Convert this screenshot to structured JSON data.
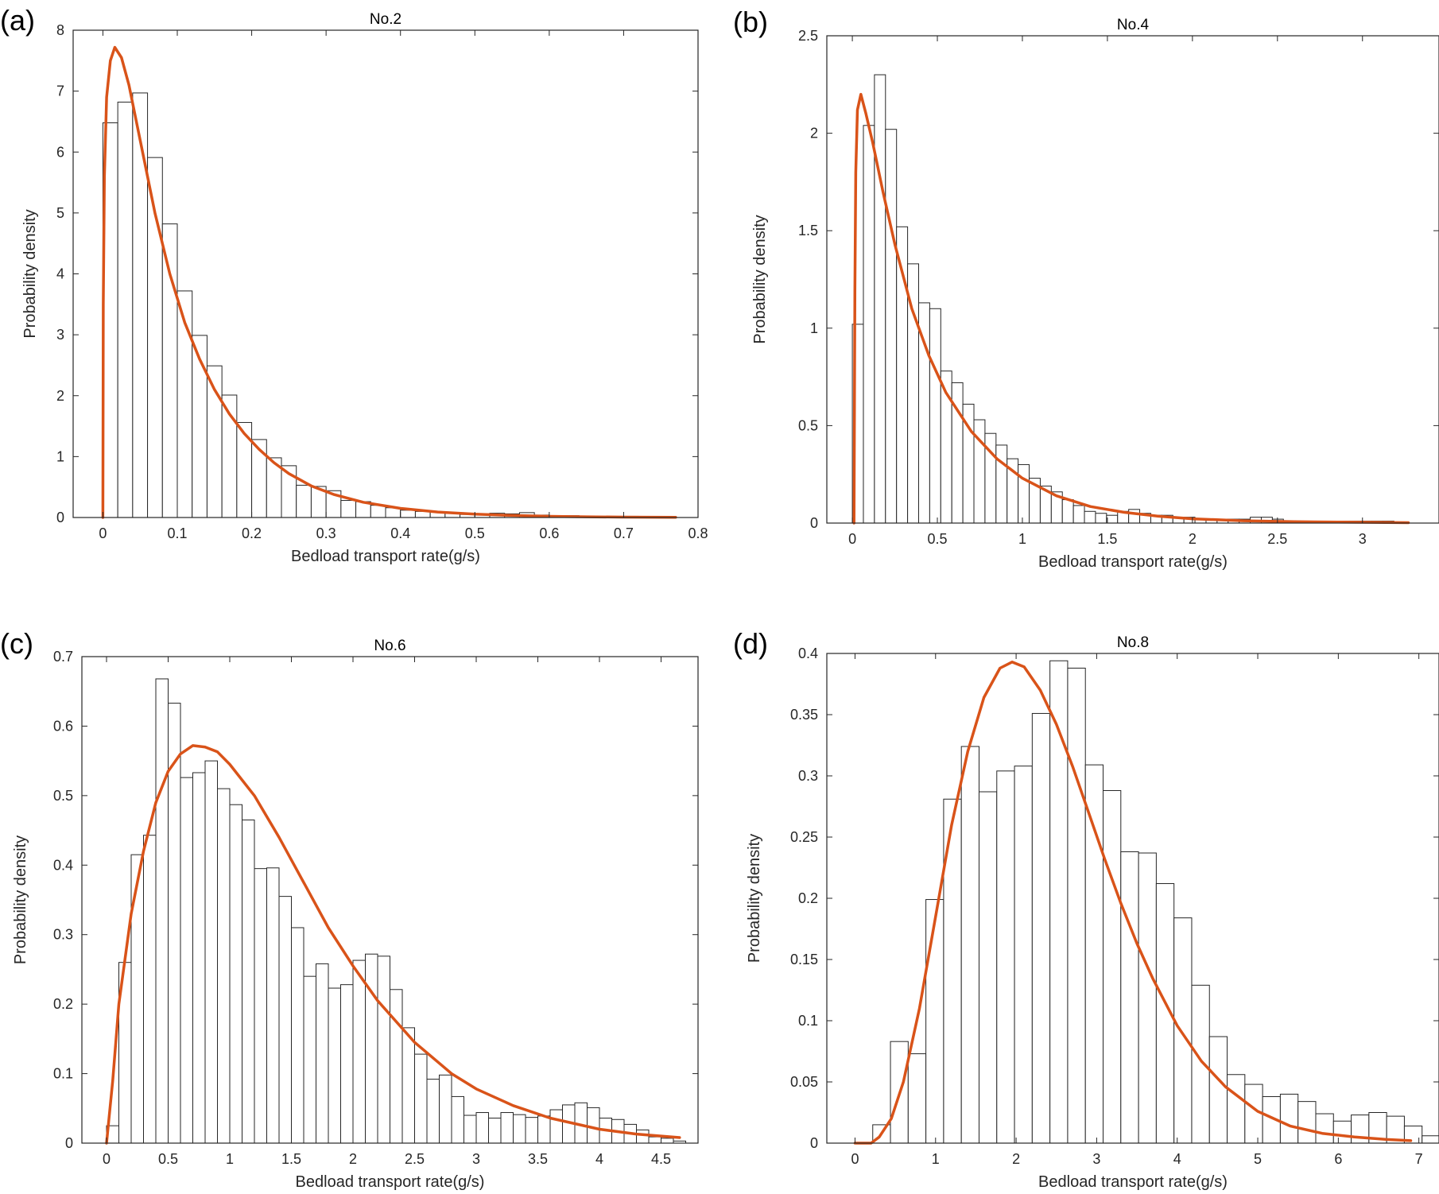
{
  "figure": {
    "curve_color": "#D95319",
    "bar_edge_color": "#262626",
    "bar_fill_color": "#FFFFFF"
  },
  "chart_data": [
    {
      "type": "bar",
      "panel_label": "(a)",
      "title": "No.2",
      "xlabel": "Bedload transport rate(g/s)",
      "ylabel": "Probability density",
      "xlim": [
        -0.04,
        0.8
      ],
      "ylim": [
        0,
        8
      ],
      "xticks": [
        0,
        0.1,
        0.2,
        0.3,
        0.4,
        0.5,
        0.6,
        0.7,
        0.8
      ],
      "yticks": [
        0,
        1,
        2,
        3,
        4,
        5,
        6,
        7,
        8
      ],
      "grid": false,
      "legend": "none",
      "histogram": {
        "bin_start": 0.0,
        "bin_width": 0.02,
        "values": [
          6.48,
          6.82,
          6.97,
          5.91,
          4.82,
          3.72,
          2.99,
          2.49,
          2.01,
          1.56,
          1.28,
          0.98,
          0.85,
          0.53,
          0.51,
          0.44,
          0.28,
          0.26,
          0.2,
          0.16,
          0.12,
          0.1,
          0.09,
          0.07,
          0.05,
          0.06,
          0.07,
          0.06,
          0.08,
          0.04,
          0.03,
          0.03,
          0.02,
          0.02,
          0.02,
          0.02,
          0.01,
          0.01
        ]
      },
      "fitted_curve": {
        "x": [
          0,
          0.0005,
          0.002,
          0.005,
          0.01,
          0.016,
          0.025,
          0.035,
          0.05,
          0.07,
          0.09,
          0.11,
          0.13,
          0.15,
          0.17,
          0.19,
          0.21,
          0.23,
          0.25,
          0.28,
          0.31,
          0.35,
          0.4,
          0.45,
          0.5,
          0.55,
          0.6,
          0.65,
          0.7,
          0.77
        ],
        "y": [
          0,
          3.5,
          5.6,
          6.9,
          7.5,
          7.72,
          7.55,
          7.1,
          6.2,
          5.0,
          4.0,
          3.2,
          2.6,
          2.1,
          1.7,
          1.38,
          1.12,
          0.9,
          0.72,
          0.52,
          0.38,
          0.25,
          0.15,
          0.09,
          0.055,
          0.034,
          0.02,
          0.012,
          0.007,
          0.004
        ]
      }
    },
    {
      "type": "bar",
      "panel_label": "(b)",
      "title": "No.4",
      "xlabel": "Bedload transport rate(g/s)",
      "ylabel": "Probability density",
      "xlim": [
        -0.15,
        3.45
      ],
      "ylim": [
        0,
        2.5
      ],
      "xticks": [
        0,
        0.5,
        1,
        1.5,
        2,
        2.5,
        3
      ],
      "yticks": [
        0,
        0.5,
        1,
        1.5,
        2,
        2.5
      ],
      "grid": false,
      "legend": "none",
      "histogram": {
        "bin_start": 0.0,
        "bin_width": 0.065,
        "values": [
          1.02,
          2.04,
          2.3,
          2.02,
          1.52,
          1.33,
          1.13,
          1.1,
          0.78,
          0.72,
          0.61,
          0.53,
          0.46,
          0.4,
          0.33,
          0.3,
          0.23,
          0.19,
          0.16,
          0.12,
          0.09,
          0.06,
          0.05,
          0.04,
          0.06,
          0.07,
          0.05,
          0.04,
          0.04,
          0.03,
          0.03,
          0.02,
          0.02,
          0.02,
          0.02,
          0.02,
          0.03,
          0.03,
          0.02,
          0.01,
          0.01,
          0.01,
          0.01,
          0.01,
          0.01,
          0.01,
          0.01,
          0.01,
          0.01
        ]
      },
      "fitted_curve": {
        "x": [
          0.01,
          0.015,
          0.02,
          0.03,
          0.05,
          0.08,
          0.12,
          0.18,
          0.25,
          0.35,
          0.45,
          0.55,
          0.7,
          0.85,
          1.0,
          1.2,
          1.4,
          1.6,
          1.8,
          2.0,
          2.3,
          2.6,
          3.0,
          3.27
        ],
        "y": [
          0,
          1.2,
          1.8,
          2.12,
          2.2,
          2.1,
          1.95,
          1.7,
          1.43,
          1.1,
          0.86,
          0.67,
          0.47,
          0.33,
          0.23,
          0.14,
          0.085,
          0.055,
          0.035,
          0.022,
          0.012,
          0.007,
          0.004,
          0.002
        ]
      }
    },
    {
      "type": "bar",
      "panel_label": "(c)",
      "title": "No.6",
      "xlabel": "Bedload transport rate(g/s)",
      "ylabel": "Probability density",
      "xlim": [
        -0.2,
        4.8
      ],
      "ylim": [
        0,
        0.7
      ],
      "xticks": [
        0,
        0.5,
        1,
        1.5,
        2,
        2.5,
        3,
        3.5,
        4,
        4.5
      ],
      "yticks": [
        0,
        0.1,
        0.2,
        0.3,
        0.4,
        0.5,
        0.6,
        0.7
      ],
      "grid": false,
      "legend": "none",
      "histogram": {
        "bin_start": 0.0,
        "bin_width": 0.1,
        "values": [
          0.025,
          0.26,
          0.415,
          0.443,
          0.668,
          0.633,
          0.526,
          0.533,
          0.55,
          0.51,
          0.487,
          0.465,
          0.395,
          0.396,
          0.355,
          0.31,
          0.24,
          0.258,
          0.223,
          0.228,
          0.263,
          0.272,
          0.269,
          0.221,
          0.166,
          0.128,
          0.092,
          0.098,
          0.067,
          0.04,
          0.044,
          0.036,
          0.044,
          0.041,
          0.037,
          0.039,
          0.048,
          0.055,
          0.058,
          0.051,
          0.036,
          0.034,
          0.027,
          0.019,
          0.009,
          0.007,
          0.003
        ]
      },
      "fitted_curve": {
        "x": [
          0.0,
          0.05,
          0.1,
          0.2,
          0.3,
          0.4,
          0.5,
          0.6,
          0.7,
          0.8,
          0.9,
          1.0,
          1.2,
          1.4,
          1.6,
          1.8,
          2.0,
          2.2,
          2.5,
          2.8,
          3.0,
          3.3,
          3.6,
          4.0,
          4.3,
          4.65
        ],
        "y": [
          0,
          0.09,
          0.2,
          0.33,
          0.42,
          0.49,
          0.535,
          0.56,
          0.572,
          0.57,
          0.563,
          0.545,
          0.5,
          0.44,
          0.375,
          0.31,
          0.255,
          0.205,
          0.145,
          0.1,
          0.078,
          0.054,
          0.036,
          0.02,
          0.013,
          0.008
        ]
      }
    },
    {
      "type": "bar",
      "panel_label": "(d)",
      "title": "No.8",
      "xlabel": "Bedload transport rate(g/s)",
      "ylabel": "Probability density",
      "xlim": [
        -0.35,
        7.25
      ],
      "ylim": [
        0,
        0.4
      ],
      "xticks": [
        0,
        1,
        2,
        3,
        4,
        5,
        6,
        7
      ],
      "yticks": [
        0,
        0.05,
        0.1,
        0.15,
        0.2,
        0.25,
        0.3,
        0.35,
        0.4
      ],
      "grid": false,
      "legend": "none",
      "histogram": {
        "bin_start": 0.0,
        "bin_width": 0.22,
        "values": [
          0.0,
          0.015,
          0.083,
          0.073,
          0.199,
          0.281,
          0.324,
          0.287,
          0.304,
          0.308,
          0.351,
          0.394,
          0.388,
          0.309,
          0.288,
          0.238,
          0.237,
          0.212,
          0.184,
          0.129,
          0.087,
          0.056,
          0.048,
          0.038,
          0.04,
          0.034,
          0.024,
          0.018,
          0.023,
          0.025,
          0.022,
          0.014,
          0.006,
          0.003,
          0.001
        ]
      },
      "fitted_curve": {
        "x": [
          0.0,
          0.2,
          0.3,
          0.45,
          0.6,
          0.8,
          1.0,
          1.2,
          1.4,
          1.6,
          1.8,
          1.95,
          2.1,
          2.3,
          2.5,
          2.7,
          2.9,
          3.1,
          3.3,
          3.5,
          3.7,
          4.0,
          4.3,
          4.6,
          5.0,
          5.4,
          5.8,
          6.2,
          6.6,
          6.9
        ],
        "y": [
          0,
          0.0,
          0.005,
          0.02,
          0.05,
          0.11,
          0.185,
          0.26,
          0.32,
          0.364,
          0.388,
          0.393,
          0.389,
          0.37,
          0.342,
          0.308,
          0.27,
          0.232,
          0.196,
          0.163,
          0.134,
          0.096,
          0.067,
          0.046,
          0.026,
          0.014,
          0.008,
          0.005,
          0.003,
          0.002
        ]
      }
    }
  ]
}
